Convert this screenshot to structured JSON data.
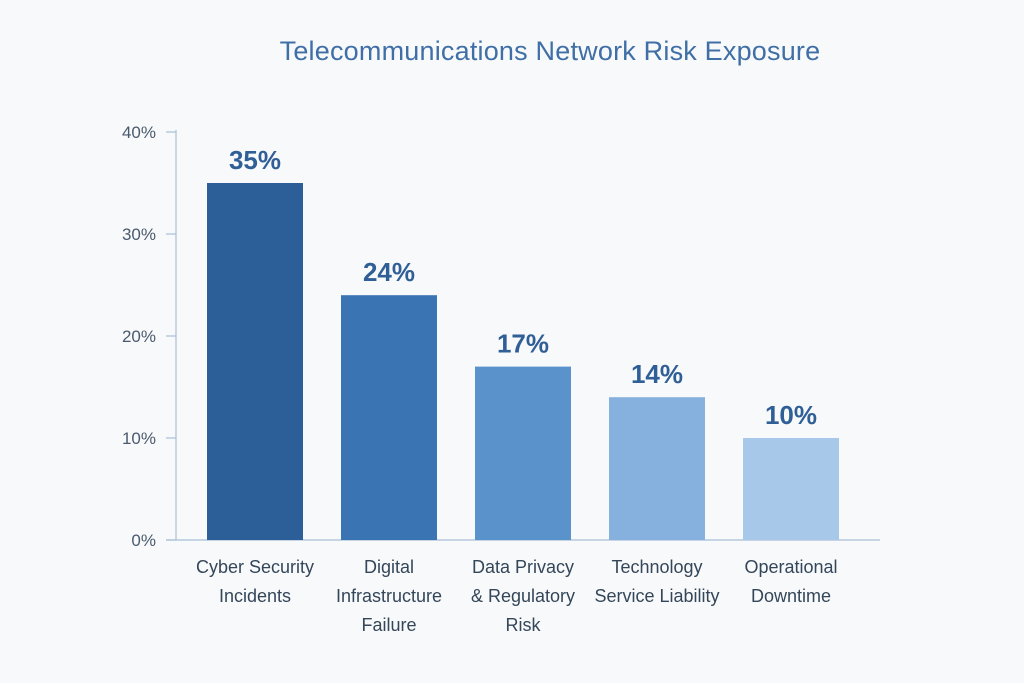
{
  "chart_data": {
    "type": "bar",
    "title": "Telecommunications Network Risk Exposure",
    "xlabel": "",
    "ylabel": "",
    "ylim": [
      0,
      40
    ],
    "yticks": [
      0,
      10,
      20,
      30,
      40
    ],
    "ytick_labels": [
      "0%",
      "10%",
      "20%",
      "30%",
      "40%"
    ],
    "grid": false,
    "categories": [
      [
        "Cyber Security",
        "Incidents"
      ],
      [
        "Digital",
        "Infrastructure",
        "Failure"
      ],
      [
        "Data Privacy",
        "& Regulatory",
        "Risk"
      ],
      [
        "Technology",
        "Service Liability"
      ],
      [
        "Operational",
        "Downtime"
      ]
    ],
    "values": [
      35,
      24,
      17,
      14,
      10
    ],
    "data_labels": [
      "35%",
      "24%",
      "17%",
      "14%",
      "10%"
    ],
    "colors": [
      "#2c5e98",
      "#3a74b2",
      "#5a93cc",
      "#86b1de",
      "#a8c8ea"
    ]
  }
}
